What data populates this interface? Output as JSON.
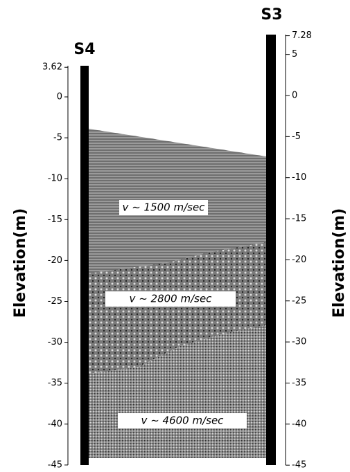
{
  "boreholes": [
    {
      "label": "S4"
    },
    {
      "label": "S3"
    }
  ],
  "left_axis": {
    "label": "Elevation(m)",
    "ticks": [
      3.62,
      0,
      -5,
      -10,
      -15,
      -20,
      -25,
      -30,
      -35,
      -40,
      -45
    ]
  },
  "right_axis": {
    "label": "Elevation(m)",
    "ticks": [
      7.28,
      5,
      0,
      -5,
      -10,
      -15,
      -20,
      -25,
      -30,
      -35,
      -40,
      -45
    ]
  },
  "layers": [
    {
      "label": "v ~ 1500 m/sec"
    },
    {
      "label": "v ~ 2800 m/sec"
    },
    {
      "label": "v ~ 4600 m/sec"
    }
  ]
}
